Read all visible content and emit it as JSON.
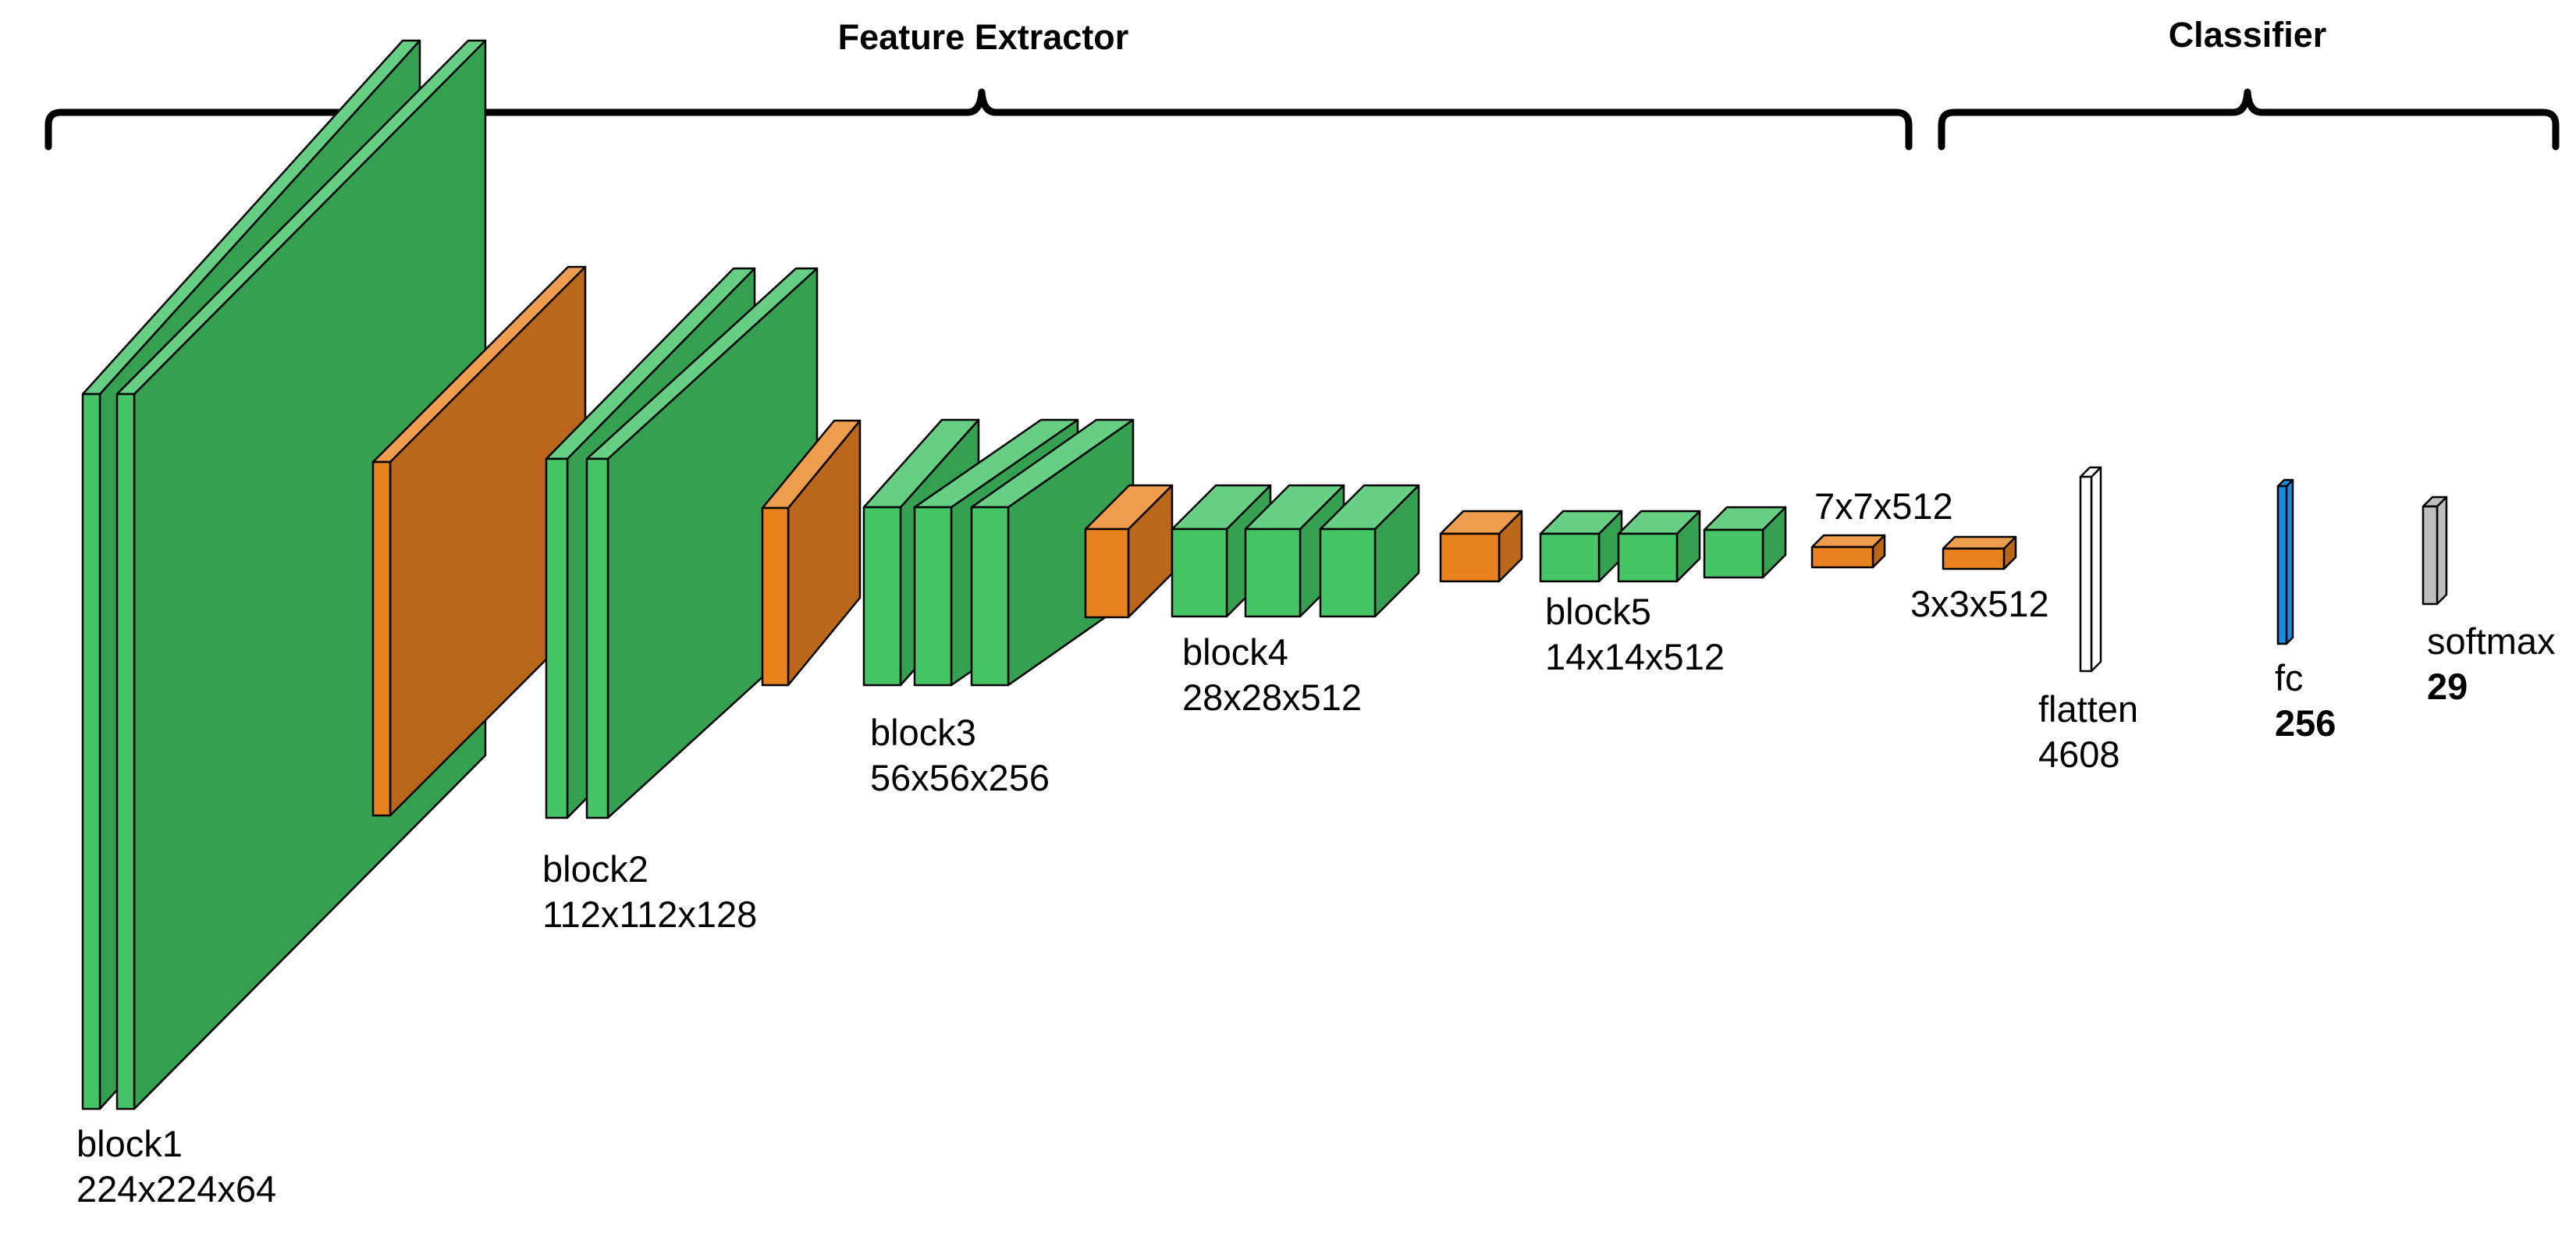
{
  "headers": {
    "feature_extractor": "Feature Extractor",
    "classifier": "Classifier"
  },
  "blocks": {
    "block1": {
      "name": "block1",
      "dims": "224x224x64"
    },
    "block2": {
      "name": "block2",
      "dims": "112x112x128"
    },
    "block3": {
      "name": "block3",
      "dims": "56x56x256"
    },
    "block4": {
      "name": "block4",
      "dims": "28x28x512"
    },
    "block5": {
      "name": "block5",
      "dims": "14x14x512"
    }
  },
  "pool_outputs": {
    "pool5": "7x7x512",
    "pool6": "3x3x512"
  },
  "classifier": {
    "flatten": {
      "name": "flatten",
      "units": "4608"
    },
    "fc": {
      "name": "fc",
      "units": "256"
    },
    "softmax": {
      "name": "softmax",
      "units": "29"
    }
  },
  "colors": {
    "conv_front": "#45C565",
    "conv_side": "#35A04F",
    "conv_top": "#67CF83",
    "pool_front": "#E8821E",
    "pool_side": "#BA661B",
    "pool_top": "#EE9C4E",
    "flatten": "#FFFFFF",
    "fc": "#1B8DE0",
    "softmax": "#BDBDBD"
  }
}
